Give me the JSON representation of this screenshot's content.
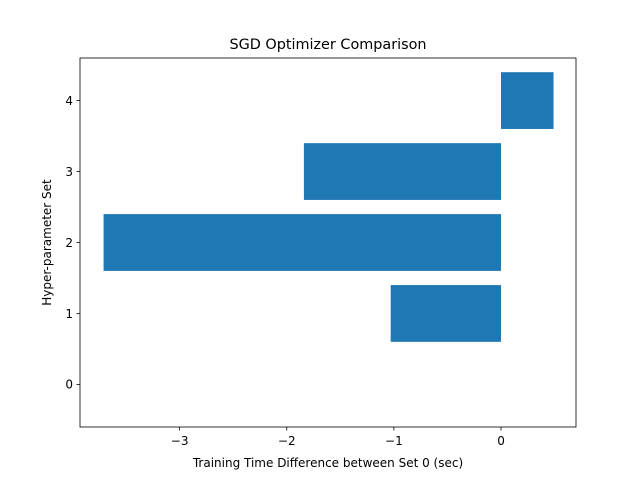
{
  "chart_data": {
    "type": "bar",
    "orientation": "horizontal",
    "title": "SGD Optimizer Comparison",
    "xlabel": "Training Time Difference between Set 0 (sec)",
    "ylabel": "Hyper-parameter Set",
    "categories": [
      "0",
      "1",
      "2",
      "3",
      "4"
    ],
    "values": [
      0,
      -1.03,
      -3.71,
      -1.84,
      0.49
    ],
    "xlim": [
      -3.93,
      0.7
    ],
    "ylim": [
      -0.6,
      4.6
    ],
    "xticks": [
      -3,
      -2,
      -1,
      0
    ],
    "xtick_labels": [
      "−3",
      "−2",
      "−1",
      "0"
    ],
    "yticks": [
      0,
      1,
      2,
      3,
      4
    ],
    "ytick_labels": [
      "0",
      "1",
      "2",
      "3",
      "4"
    ],
    "bar_color": "#1f77b4",
    "grid": false,
    "legend": "none"
  }
}
